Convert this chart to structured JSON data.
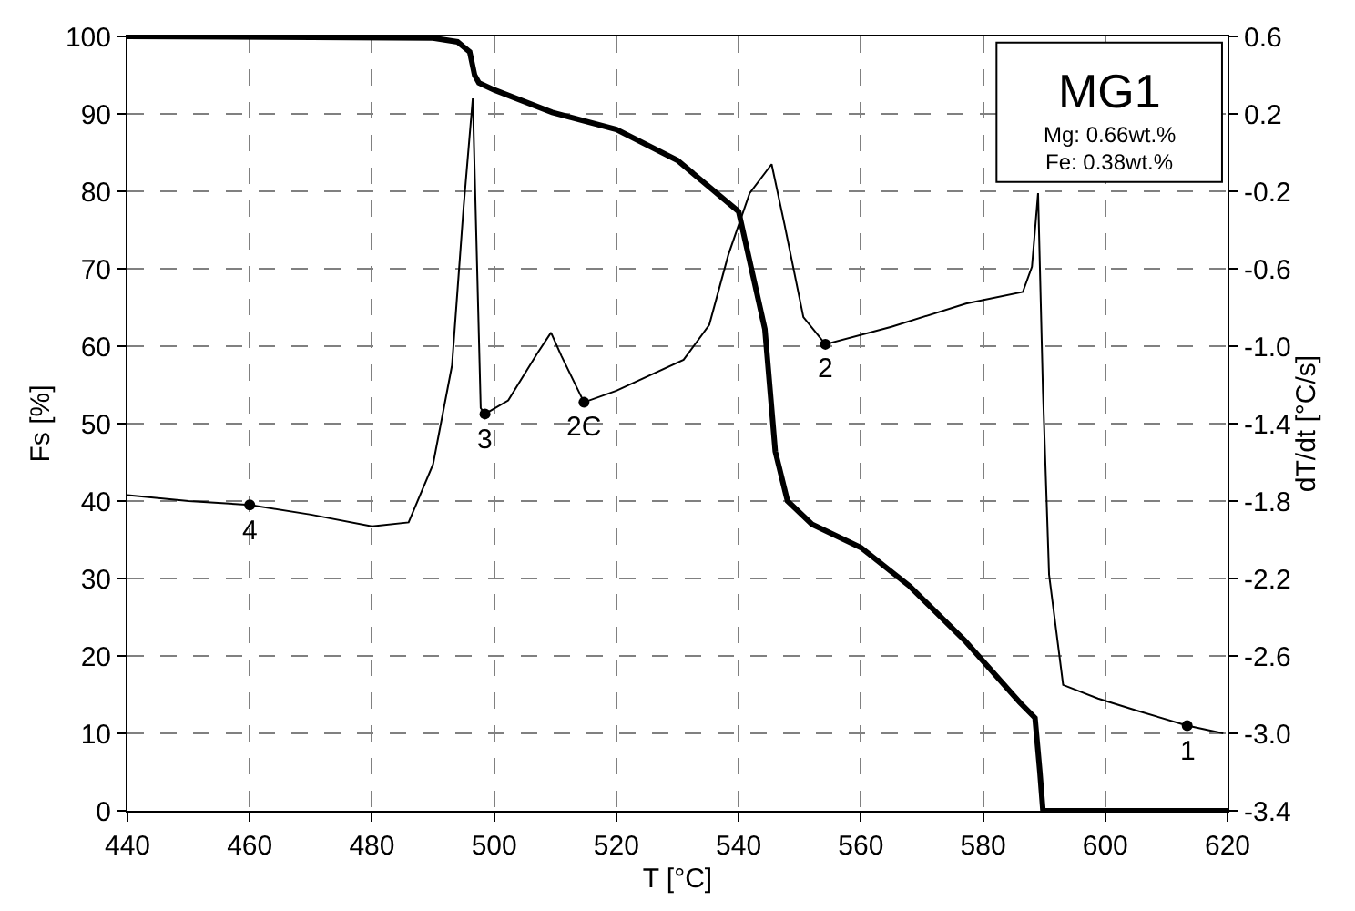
{
  "chart_data": {
    "type": "line",
    "xlabel": "T [°C]",
    "ylabel": "Fs [%]",
    "y2label": "dT/dt [°C/s]",
    "xlim": [
      440,
      620
    ],
    "xticks": [
      440,
      460,
      480,
      500,
      520,
      540,
      560,
      580,
      600,
      620
    ],
    "ylim": [
      0,
      100
    ],
    "yticks": [
      0,
      10,
      20,
      30,
      40,
      50,
      60,
      70,
      80,
      90,
      100
    ],
    "y2lim": [
      -3.4,
      0.6
    ],
    "y2ticks": [
      -3.4,
      {
        "value": -3.0,
        "label": "-3.0"
      },
      -2.6,
      -2.2,
      -1.8,
      -1.4,
      {
        "value": -1.0,
        "label": "-1.0"
      },
      -0.6,
      -0.2,
      0.2,
      0.6
    ],
    "grid": true,
    "series": [
      {
        "color": "#000000",
        "x": [
          440,
          490,
          494,
          496,
          496.8,
          497.5,
          500,
          509.5,
          520,
          530,
          540,
          544.3,
          546,
          548,
          552,
          560,
          568,
          577,
          586,
          588.5,
          589.3,
          589.8,
          595,
          620
        ],
        "values": [
          100,
          99.8,
          99.3,
          98,
          95,
          94,
          93.1,
          90.2,
          88,
          84,
          77.4,
          62.2,
          46.4,
          40,
          37,
          34,
          29,
          22,
          14,
          12,
          5,
          0,
          0,
          0
        ]
      },
      {
        "axis": "y2",
        "color": "#000000",
        "x": [
          440,
          450,
          460,
          470,
          480,
          486,
          490,
          493.1,
          495,
          496.5,
          497.8,
          498.5,
          502.3,
          507,
          509.3,
          511,
          514.7,
          520,
          531,
          535.2,
          538.3,
          541.8,
          545.4,
          547.5,
          550.6,
          554.2,
          565,
          577.2,
          586.5,
          588,
          589,
          589.8,
          590.8,
          593.1,
          598.8,
          604.9,
          613.4,
          619.3
        ],
        "values": [
          -1.77,
          -1.8,
          -1.82,
          -1.87,
          -1.93,
          -1.91,
          -1.61,
          -1.1,
          -0.28,
          0.28,
          -1.32,
          -1.35,
          -1.28,
          -1.04,
          -0.93,
          -1.05,
          -1.29,
          -1.23,
          -1.07,
          -0.89,
          -0.53,
          -0.21,
          -0.06,
          -0.37,
          -0.85,
          -0.99,
          -0.9,
          -0.78,
          -0.72,
          -0.59,
          -0.21,
          -1.23,
          -2.18,
          -2.75,
          -2.82,
          -2.88,
          -2.96,
          -3.0
        ]
      },
      {
        "type": "scatter",
        "axis": "y2",
        "color": "#000000",
        "marker": "circle",
        "x": [
          613.4,
          554.2,
          514.7,
          498.5,
          460
        ],
        "values": [
          -2.96,
          -0.99,
          -1.29,
          -1.35,
          -1.82
        ]
      }
    ],
    "annotations": [
      "1",
      "2",
      "2C",
      "3",
      "4",
      "MG1",
      "Mg: 0.66wt.%",
      "Fe: 0.38wt.%"
    ]
  }
}
